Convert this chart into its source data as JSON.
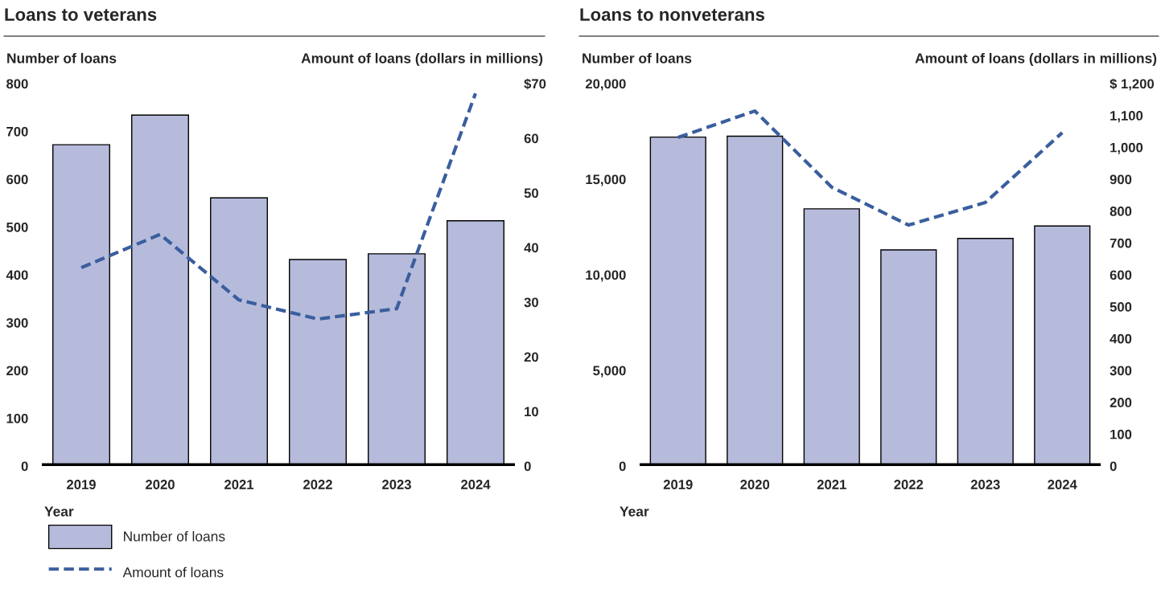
{
  "chart_data": [
    {
      "type": "bar",
      "title": "Loans to veterans",
      "ylabel": "Number of loans",
      "y2label": "Amount of loans (dollars in millions)",
      "xlabel": "Year",
      "categories": [
        "2019",
        "2020",
        "2021",
        "2022",
        "2023",
        "2024"
      ],
      "series": [
        {
          "name": "Number of loans",
          "color": "#b6bbdc",
          "values": [
            672,
            734,
            561,
            432,
            444,
            513
          ]
        },
        {
          "name": "Amount of loans",
          "type": "line",
          "axis": "y2",
          "color": "#3a5e9e",
          "line_style": "dashed",
          "values": [
            36.3,
            42.4,
            30.4,
            26.9,
            28.8,
            68.2
          ]
        }
      ],
      "ylim": [
        0,
        800
      ],
      "yticks": [
        0,
        100,
        200,
        300,
        400,
        500,
        600,
        700,
        800
      ],
      "y2lim": [
        0,
        70
      ],
      "y2ticks": [
        0,
        10,
        20,
        30,
        40,
        50,
        60,
        {
          "value": 70,
          "label": "$70"
        }
      ],
      "grid": false,
      "legend": "bottom left"
    },
    {
      "type": "bar",
      "title": "Loans to nonveterans",
      "ylabel": "Number of loans",
      "y2label": "Amount of loans (dollars in millions)",
      "xlabel": "Year",
      "categories": [
        "2019",
        "2020",
        "2021",
        "2022",
        "2023",
        "2024"
      ],
      "series": [
        {
          "color": "#b6bbdc",
          "values": [
            17200,
            17250,
            13450,
            11300,
            11900,
            12550
          ]
        },
        {
          "type": "line",
          "axis": "y2",
          "color": "#3a5e9e",
          "line_style": "dashed",
          "values": [
            1031,
            1114,
            875,
            756,
            827,
            1046
          ]
        }
      ],
      "ylim": [
        0,
        20000
      ],
      "yticks": [
        0,
        {
          "value": 5000,
          "label": "5,000"
        },
        {
          "value": 10000,
          "label": "10,000"
        },
        {
          "value": 15000,
          "label": "15,000"
        },
        {
          "value": 20000,
          "label": "20,000"
        }
      ],
      "y2lim": [
        0,
        1200
      ],
      "y2ticks": [
        0,
        100,
        200,
        300,
        400,
        500,
        600,
        700,
        800,
        900,
        {
          "value": 1000,
          "label": "1,000"
        },
        {
          "value": 1100,
          "label": "1,100"
        },
        {
          "value": 1200,
          "label": "$ 1,200"
        }
      ],
      "grid": false,
      "legend": false
    }
  ]
}
